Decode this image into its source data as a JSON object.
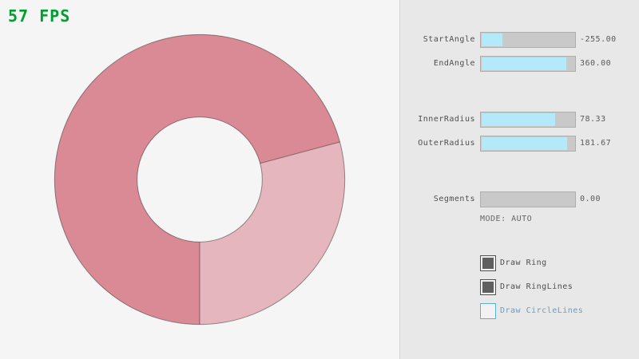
{
  "fps": {
    "text": "57 FPS",
    "color": "#009e2f"
  },
  "ring": {
    "start_angle": -255.0,
    "end_angle": 360.0,
    "inner_radius": 78.33,
    "outer_radius": 181.67,
    "segments": 0,
    "colors": {
      "double_pass": "#d98a95",
      "single_pass": "#e5b6bd",
      "outline": "rgba(0,0,0,0.4)"
    }
  },
  "panel": {
    "sliders": [
      {
        "label": "StartAngle",
        "value": "-255.00",
        "fraction": 0.2167
      },
      {
        "label": "EndAngle",
        "value": "360.00",
        "fraction": 0.9
      },
      {
        "label": "InnerRadius",
        "value": "78.33",
        "fraction": 0.7833
      },
      {
        "label": "OuterRadius",
        "value": "181.67",
        "fraction": 0.9083
      },
      {
        "label": "Segments",
        "value": "0.00",
        "fraction": 0.0
      }
    ],
    "mode_text": "MODE: AUTO",
    "checkboxes": [
      {
        "label": "Draw Ring",
        "state": "checked"
      },
      {
        "label": "Draw RingLines",
        "state": "checked"
      },
      {
        "label": "Draw CircleLines",
        "state": "focused"
      }
    ],
    "accent_fill_color": "#b4e9f9"
  }
}
